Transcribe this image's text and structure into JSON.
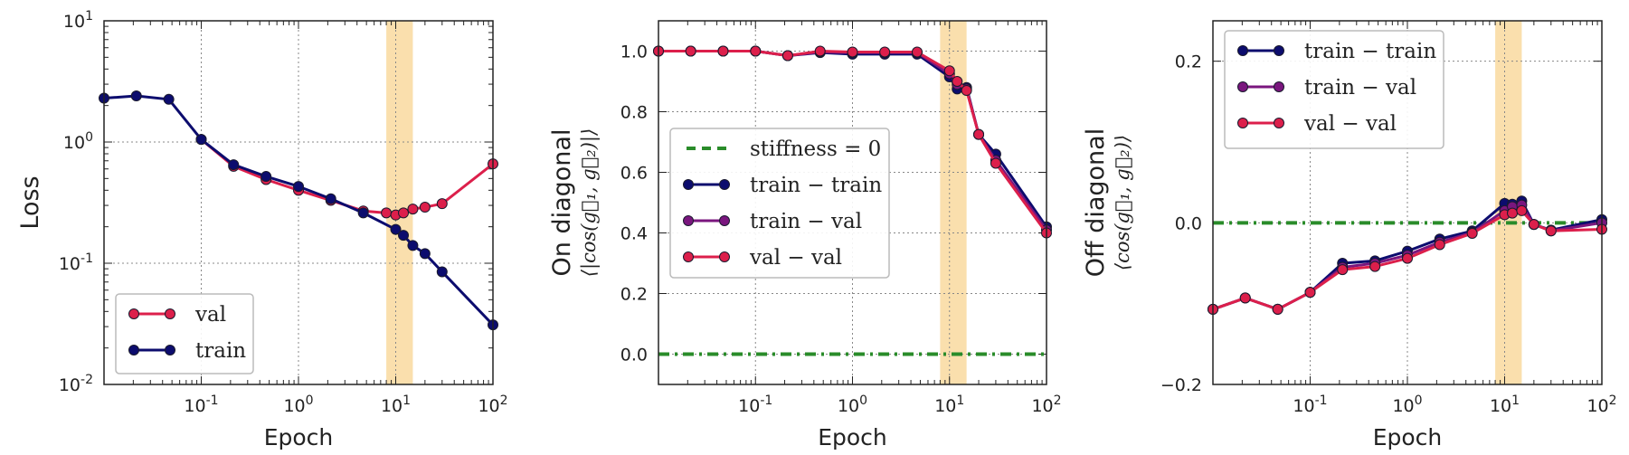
{
  "colors": {
    "train": "#0c0c6e",
    "val": "#dc1f4b",
    "trainval": "#7a167e",
    "green": "#2a8c2a",
    "band": "#f5b84a"
  },
  "chart_data": [
    {
      "type": "line",
      "xscale": "log",
      "yscale": "log",
      "xlim": [
        0.01,
        100
      ],
      "ylim": [
        0.01,
        10
      ],
      "xlabel": "Epoch",
      "ylabel": "Loss",
      "x_ticks": [
        {
          "v": 0.1,
          "b": "10",
          "e": "-1"
        },
        {
          "v": 1,
          "b": "10",
          "e": "0"
        },
        {
          "v": 10,
          "b": "10",
          "e": "1"
        },
        {
          "v": 100,
          "b": "10",
          "e": "2"
        }
      ],
      "y_ticks": [
        {
          "v": 0.01,
          "b": "10",
          "e": "-2"
        },
        {
          "v": 0.1,
          "b": "10",
          "e": "-1"
        },
        {
          "v": 1,
          "b": "10",
          "e": "0"
        },
        {
          "v": 10,
          "b": "10",
          "e": "1"
        }
      ],
      "band": [
        8,
        15
      ],
      "legend": {
        "position": "lower-left",
        "entries": [
          {
            "label": "val",
            "color_key": "val"
          },
          {
            "label": "train",
            "color_key": "train"
          }
        ]
      },
      "series": [
        {
          "name": "val",
          "color_key": "val",
          "x": [
            0.1,
            0.215,
            0.464,
            1,
            2.15,
            4.64,
            8,
            10,
            12,
            15,
            20,
            30,
            100
          ],
          "y": [
            1.05,
            0.63,
            0.49,
            0.4,
            0.33,
            0.27,
            0.26,
            0.25,
            0.26,
            0.28,
            0.29,
            0.31,
            0.66
          ]
        },
        {
          "name": "train",
          "color_key": "train",
          "x": [
            0.01,
            0.0215,
            0.0464,
            0.1,
            0.215,
            0.464,
            1,
            2.15,
            4.64,
            10,
            12,
            15,
            20,
            30,
            100
          ],
          "y": [
            2.3,
            2.4,
            2.25,
            1.05,
            0.65,
            0.52,
            0.43,
            0.34,
            0.26,
            0.19,
            0.17,
            0.14,
            0.12,
            0.085,
            0.031
          ]
        }
      ]
    },
    {
      "type": "line",
      "xscale": "log",
      "yscale": "linear",
      "xlim": [
        0.01,
        100
      ],
      "ylim": [
        -0.1,
        1.1
      ],
      "xlabel": "Epoch",
      "ylabel": "On diagonal",
      "ylabel_sub": "⟨|cos(g⃗₁, g⃗₂)|⟩",
      "x_ticks": [
        {
          "v": 0.1,
          "b": "10",
          "e": "-1"
        },
        {
          "v": 1,
          "b": "10",
          "e": "0"
        },
        {
          "v": 10,
          "b": "10",
          "e": "1"
        },
        {
          "v": 100,
          "b": "10",
          "e": "2"
        }
      ],
      "y_ticks": [
        {
          "v": 0,
          "t": "0.0"
        },
        {
          "v": 0.2,
          "t": "0.2"
        },
        {
          "v": 0.4,
          "t": "0.4"
        },
        {
          "v": 0.6,
          "t": "0.6"
        },
        {
          "v": 0.8,
          "t": "0.8"
        },
        {
          "v": 1.0,
          "t": "1.0"
        }
      ],
      "band": [
        8,
        15
      ],
      "hline": {
        "y": 0,
        "color_key": "green",
        "label": "stiffness = 0"
      },
      "legend": {
        "position": "center-left",
        "entries": [
          {
            "label": "stiffness = 0",
            "color_key": "green",
            "dashed": true
          },
          {
            "label": "train − train",
            "color_key": "train"
          },
          {
            "label": "train − val",
            "color_key": "trainval"
          },
          {
            "label": "val − val",
            "color_key": "val"
          }
        ]
      },
      "series": [
        {
          "name": "train − train",
          "color_key": "train",
          "x": [
            0.01,
            0.0215,
            0.0464,
            0.1,
            0.215,
            0.464,
            1,
            2.15,
            4.64,
            10,
            12,
            15,
            20,
            30,
            100
          ],
          "y": [
            1.0,
            1.0,
            1.0,
            1.0,
            0.985,
            0.995,
            0.99,
            0.99,
            0.99,
            0.915,
            0.875,
            0.88,
            0.725,
            0.66,
            0.42
          ]
        },
        {
          "name": "train − val",
          "color_key": "trainval",
          "x": [
            0.01,
            0.0215,
            0.0464,
            0.1,
            0.215,
            0.464,
            1,
            2.15,
            4.64,
            10,
            12,
            15,
            20,
            30,
            100
          ],
          "y": [
            1.0,
            1.0,
            1.0,
            1.0,
            0.985,
            0.997,
            0.995,
            0.995,
            0.995,
            0.925,
            0.89,
            0.875,
            0.725,
            0.64,
            0.41
          ]
        },
        {
          "name": "val − val",
          "color_key": "val",
          "x": [
            0.01,
            0.0215,
            0.0464,
            0.1,
            0.215,
            0.464,
            1,
            2.15,
            4.64,
            10,
            12,
            15,
            20,
            30,
            100
          ],
          "y": [
            1.0,
            1.0,
            1.0,
            1.0,
            0.985,
            1.0,
            0.997,
            0.997,
            0.997,
            0.935,
            0.9,
            0.87,
            0.725,
            0.63,
            0.4
          ]
        }
      ]
    },
    {
      "type": "line",
      "xscale": "log",
      "yscale": "linear",
      "xlim": [
        0.01,
        100
      ],
      "ylim": [
        -0.2,
        0.25
      ],
      "xlabel": "Epoch",
      "ylabel": "Off diagonal",
      "ylabel_sub": "⟨cos(g⃗₁, g⃗₂)⟩",
      "x_ticks": [
        {
          "v": 0.1,
          "b": "10",
          "e": "-1"
        },
        {
          "v": 1,
          "b": "10",
          "e": "0"
        },
        {
          "v": 10,
          "b": "10",
          "e": "1"
        },
        {
          "v": 100,
          "b": "10",
          "e": "2"
        }
      ],
      "y_ticks": [
        {
          "v": -0.2,
          "t": "−0.2"
        },
        {
          "v": 0,
          "t": "0.0"
        },
        {
          "v": 0.2,
          "t": "0.2"
        }
      ],
      "band": [
        8,
        15
      ],
      "hline": {
        "y": 0,
        "color_key": "green",
        "label": ""
      },
      "legend": {
        "position": "top-left",
        "entries": [
          {
            "label": "train − train",
            "color_key": "train"
          },
          {
            "label": "train − val",
            "color_key": "trainval"
          },
          {
            "label": "val − val",
            "color_key": "val"
          }
        ]
      },
      "series": [
        {
          "name": "train − train",
          "color_key": "train",
          "x": [
            0.01,
            0.0215,
            0.0464,
            0.1,
            0.215,
            0.464,
            1,
            2.15,
            4.64,
            10,
            12,
            15,
            20,
            30,
            100
          ],
          "y": [
            -0.107,
            -0.093,
            -0.107,
            -0.086,
            -0.05,
            -0.047,
            -0.035,
            -0.02,
            -0.01,
            0.024,
            0.023,
            0.027,
            -0.002,
            -0.009,
            0.004
          ]
        },
        {
          "name": "train − val",
          "color_key": "trainval",
          "x": [
            0.01,
            0.0215,
            0.0464,
            0.1,
            0.215,
            0.464,
            1,
            2.15,
            4.64,
            10,
            12,
            15,
            20,
            30,
            100
          ],
          "y": [
            -0.107,
            -0.093,
            -0.107,
            -0.086,
            -0.055,
            -0.05,
            -0.04,
            -0.024,
            -0.012,
            0.015,
            0.02,
            0.022,
            -0.002,
            -0.01,
            0.0
          ]
        },
        {
          "name": "val − val",
          "color_key": "val",
          "x": [
            0.01,
            0.0215,
            0.0464,
            0.1,
            0.215,
            0.464,
            1,
            2.15,
            4.64,
            10,
            12,
            15,
            20,
            30,
            100
          ],
          "y": [
            -0.107,
            -0.093,
            -0.107,
            -0.086,
            -0.058,
            -0.054,
            -0.044,
            -0.027,
            -0.013,
            0.01,
            0.012,
            0.015,
            -0.002,
            -0.01,
            -0.008
          ]
        }
      ]
    }
  ]
}
